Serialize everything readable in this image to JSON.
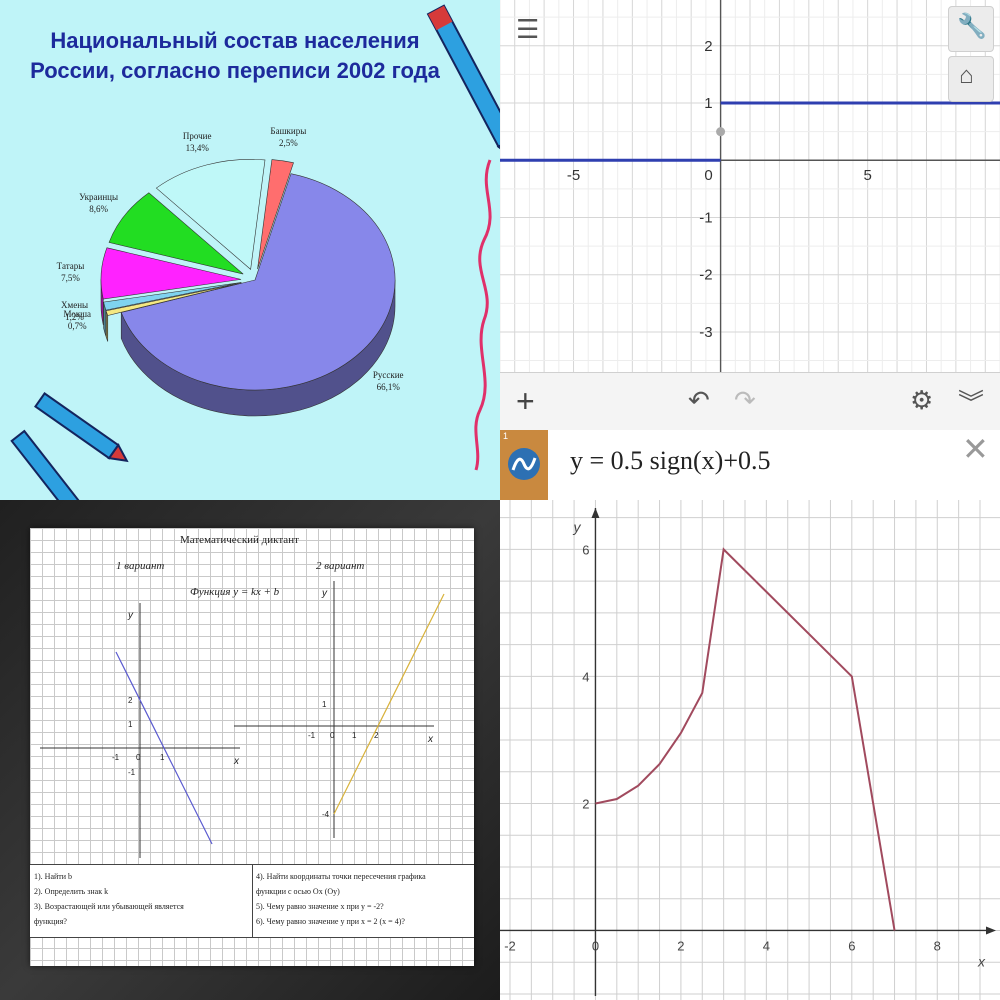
{
  "chart_data": [
    {
      "type": "pie",
      "title": "Национальный состав населения России, согласно переписи 2002 года",
      "slices": [
        {
          "name": "Русские",
          "value": 66.1,
          "label": "66,1%",
          "color": "#8787ea"
        },
        {
          "name": "Мокша",
          "value": 0.7,
          "label": "0,7%",
          "color": "#f4e882"
        },
        {
          "name": "Хмены",
          "value": 1.2,
          "label": "1,2%",
          "color": "#7fd3f0"
        },
        {
          "name": "Татары",
          "value": 7.5,
          "label": "7,5%",
          "color": "#ff22ff"
        },
        {
          "name": "Украинцы",
          "value": 8.6,
          "label": "8,6%",
          "color": "#22dd22"
        },
        {
          "name": "Прочие",
          "value": 13.4,
          "label": "13,4%",
          "color": "#bff8f8"
        },
        {
          "name": "Башкиры",
          "value": 2.5,
          "label": "2,5%",
          "color": "#ff6e6e"
        }
      ]
    },
    {
      "type": "line",
      "title": "",
      "xlim": [
        -7.5,
        9.5
      ],
      "ylim": [
        -3.7,
        2.8
      ],
      "x_ticks": [
        "-5",
        "0",
        "5"
      ],
      "y_ticks": [
        "2",
        "1",
        "-1",
        "-2",
        "-3"
      ],
      "grid": true,
      "series": [
        {
          "points": [
            [
              -7.5,
              0
            ],
            [
              0,
              0
            ]
          ]
        },
        {
          "points": [
            [
              0,
              1
            ],
            [
              9.5,
              1
            ]
          ]
        }
      ],
      "open_points": [
        [
          0,
          0.5
        ]
      ],
      "color": "#2f3fb0",
      "expression_index": "1",
      "expression": "y = 0.5 sign(x)+0.5"
    },
    {
      "type": "line",
      "title": "Математический диктант",
      "subtitle": "Функция y = kx + b",
      "panels": [
        {
          "label": "1 вариант",
          "x_ticks": [
            "-1",
            "0",
            "1"
          ],
          "y_ticks": [
            "2",
            "1",
            "-1"
          ],
          "line": [
            [
              -1,
              4
            ],
            [
              3,
              -4
            ]
          ],
          "color": "#5a5ad0"
        },
        {
          "label": "2 вариант",
          "x_ticks": [
            "-1",
            "0",
            "1",
            "2"
          ],
          "y_ticks": [
            "1",
            "-4"
          ],
          "line": [
            [
              0,
              -4
            ],
            [
              5,
              6
            ]
          ],
          "color": "#d8b23a"
        }
      ],
      "axis_labels": {
        "x": "x",
        "y": "y"
      },
      "tasks_left": [
        "1). Найти b",
        "2). Определить знак k",
        "3). Возрастающей или убывающей является",
        "функция?"
      ],
      "tasks_right": [
        "4). Найти координаты точки пересечения графика",
        "функции с осью Ох (Оу)",
        "5). Чему равно значение x при y = -2?",
        "6). Чему равно значение y при x = 2 (x = 4)?"
      ]
    },
    {
      "type": "line",
      "title": "",
      "xlabel": "x",
      "ylabel": "y",
      "xlim": [
        -2,
        9
      ],
      "ylim": [
        -1,
        6.4
      ],
      "x_ticks": [
        "-2",
        "0",
        "2",
        "4",
        "6",
        "8"
      ],
      "y_ticks": [
        "2",
        "4",
        "6"
      ],
      "grid": true,
      "series": [
        {
          "points": [
            [
              0,
              2
            ],
            [
              0.5,
              2.07
            ],
            [
              1,
              2.28
            ],
            [
              1.5,
              2.62
            ],
            [
              2,
              3.11
            ],
            [
              2.5,
              3.74
            ],
            [
              3,
              6
            ],
            [
              6,
              4
            ],
            [
              7,
              0
            ]
          ]
        }
      ],
      "color": "#a14a5e"
    }
  ]
}
